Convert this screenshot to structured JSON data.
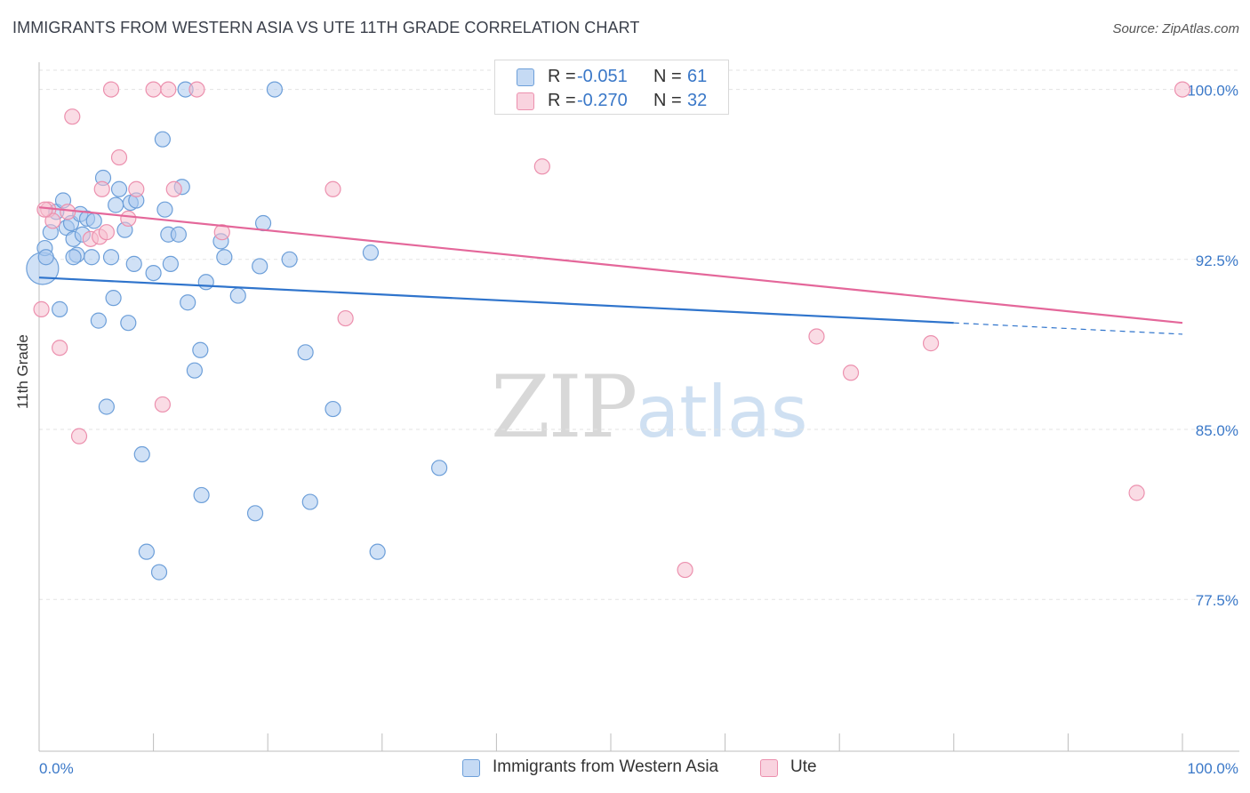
{
  "title": "IMMIGRANTS FROM WESTERN ASIA VS UTE 11TH GRADE CORRELATION CHART",
  "source": "Source: ZipAtlas.com",
  "watermark": {
    "zip": "ZIP",
    "atlas": "atlas"
  },
  "legend_top": {
    "rows": [
      {
        "r_label": "R =",
        "r_value": "-0.051",
        "n_label": "N =",
        "n_value": "61"
      },
      {
        "r_label": "R =",
        "r_value": "-0.270",
        "n_label": "N =",
        "n_value": "32"
      }
    ]
  },
  "colors": {
    "blue_fill": "#a9c8ee",
    "blue_stroke": "#6d9fd9",
    "blue_line": "#2f74cc",
    "pink_fill": "#f6bfd0",
    "pink_stroke": "#ec90ae",
    "pink_line": "#e4679a",
    "axis_text": "#3a78c8",
    "grid": "#e3e3e3"
  },
  "chart_data": {
    "type": "scatter",
    "title": "IMMIGRANTS FROM WESTERN ASIA VS UTE 11TH GRADE CORRELATION CHART",
    "xlabel": "",
    "ylabel": "11th Grade",
    "xlim": [
      0,
      100
    ],
    "ylim": [
      70.8,
      101.2
    ],
    "x_tick_labels": [
      "0.0%",
      "100.0%"
    ],
    "y_ticks": [
      77.5,
      85.0,
      92.5,
      100.0
    ],
    "y_tick_labels": [
      "77.5%",
      "85.0%",
      "92.5%",
      "100.0%"
    ],
    "grid": true,
    "legend_placement": "bottom-center",
    "series": [
      {
        "name": "Immigrants from Western Asia",
        "color": "#6d9fd9",
        "r": -0.051,
        "n": 61,
        "trend": {
          "x": [
            0,
            80
          ],
          "y": [
            91.7,
            89.7
          ],
          "dashed_to": [
            100,
            89.2
          ]
        },
        "points": [
          [
            0.3,
            92.1
          ],
          [
            0.5,
            93.0
          ],
          [
            0.6,
            92.6
          ],
          [
            1.0,
            93.7
          ],
          [
            1.5,
            94.6
          ],
          [
            1.8,
            90.3
          ],
          [
            2.1,
            95.1
          ],
          [
            2.4,
            93.9
          ],
          [
            2.8,
            94.1
          ],
          [
            3.0,
            93.4
          ],
          [
            3.3,
            92.7
          ],
          [
            3.6,
            94.5
          ],
          [
            3.8,
            93.6
          ],
          [
            4.2,
            94.3
          ],
          [
            4.6,
            92.6
          ],
          [
            4.8,
            94.2
          ],
          [
            5.2,
            89.8
          ],
          [
            5.6,
            96.1
          ],
          [
            5.9,
            86.0
          ],
          [
            6.3,
            92.6
          ],
          [
            6.5,
            90.8
          ],
          [
            6.7,
            94.9
          ],
          [
            7.0,
            95.6
          ],
          [
            7.5,
            93.8
          ],
          [
            7.8,
            89.7
          ],
          [
            8.0,
            95.0
          ],
          [
            8.3,
            92.3
          ],
          [
            8.5,
            95.1
          ],
          [
            9.0,
            83.9
          ],
          [
            10.0,
            91.9
          ],
          [
            10.5,
            78.7
          ],
          [
            10.8,
            97.8
          ],
          [
            11.0,
            94.7
          ],
          [
            11.3,
            93.6
          ],
          [
            11.5,
            92.3
          ],
          [
            12.2,
            93.6
          ],
          [
            12.5,
            95.7
          ],
          [
            12.8,
            100.0
          ],
          [
            13.0,
            90.6
          ],
          [
            13.6,
            87.6
          ],
          [
            14.1,
            88.5
          ],
          [
            14.2,
            82.1
          ],
          [
            14.6,
            91.5
          ],
          [
            15.9,
            93.3
          ],
          [
            16.2,
            92.6
          ],
          [
            17.4,
            90.9
          ],
          [
            18.9,
            81.3
          ],
          [
            19.3,
            92.2
          ],
          [
            19.6,
            94.1
          ],
          [
            20.6,
            100.0
          ],
          [
            21.9,
            92.5
          ],
          [
            23.3,
            88.4
          ],
          [
            23.7,
            81.8
          ],
          [
            25.7,
            85.9
          ],
          [
            29.0,
            92.8
          ],
          [
            29.6,
            79.6
          ],
          [
            35.0,
            83.3
          ],
          [
            42.8,
            100.0
          ],
          [
            58.0,
            100.0
          ],
          [
            9.4,
            79.6
          ],
          [
            3.0,
            92.6
          ]
        ]
      },
      {
        "name": "Ute",
        "color": "#ec90ae",
        "r": -0.27,
        "n": 32,
        "trend": {
          "x": [
            0,
            100
          ],
          "y": [
            94.8,
            89.7
          ]
        },
        "points": [
          [
            0.2,
            90.3
          ],
          [
            0.8,
            94.7
          ],
          [
            1.2,
            94.2
          ],
          [
            1.8,
            88.6
          ],
          [
            2.5,
            94.6
          ],
          [
            2.9,
            98.8
          ],
          [
            3.5,
            84.7
          ],
          [
            4.5,
            93.4
          ],
          [
            5.3,
            93.5
          ],
          [
            5.5,
            95.6
          ],
          [
            5.9,
            93.7
          ],
          [
            6.3,
            100.0
          ],
          [
            7.0,
            97.0
          ],
          [
            7.8,
            94.3
          ],
          [
            8.5,
            95.6
          ],
          [
            10.0,
            100.0
          ],
          [
            10.8,
            86.1
          ],
          [
            11.3,
            100.0
          ],
          [
            11.8,
            95.6
          ],
          [
            13.8,
            100.0
          ],
          [
            16.0,
            93.7
          ],
          [
            25.7,
            95.6
          ],
          [
            26.8,
            89.9
          ],
          [
            44.0,
            96.6
          ],
          [
            53.8,
            100.0
          ],
          [
            56.5,
            78.8
          ],
          [
            68.0,
            89.1
          ],
          [
            71.0,
            87.5
          ],
          [
            78.0,
            88.8
          ],
          [
            96.0,
            82.2
          ],
          [
            100.0,
            100.0
          ],
          [
            0.5,
            94.7
          ]
        ]
      }
    ]
  },
  "legend_bottom": {
    "items": [
      {
        "label": "Immigrants from Western Asia"
      },
      {
        "label": "Ute"
      }
    ]
  }
}
